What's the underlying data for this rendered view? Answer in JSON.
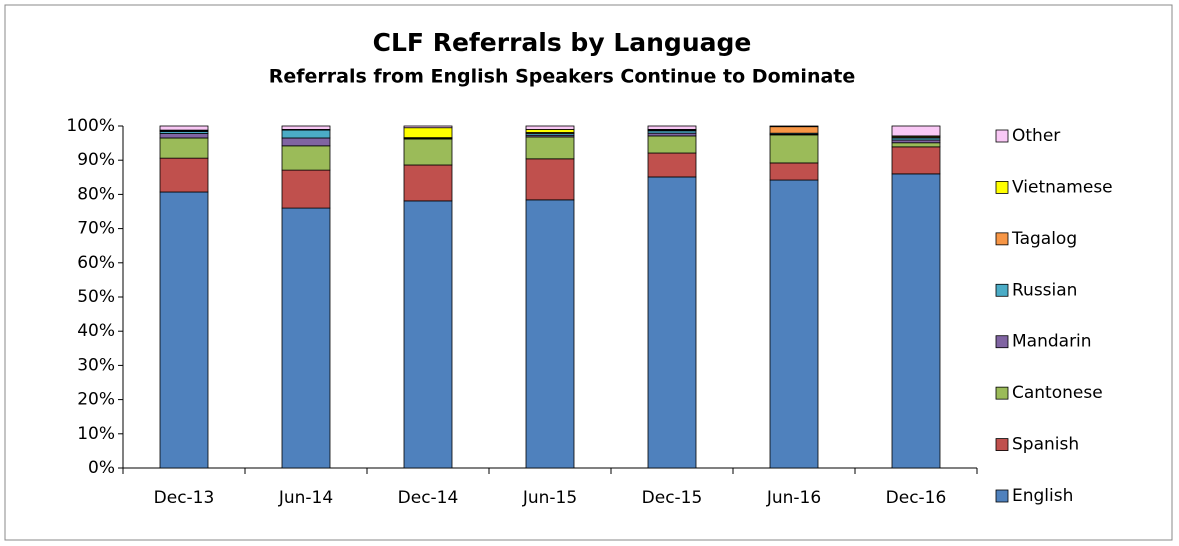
{
  "chart_data": {
    "type": "stacked_bar",
    "title": "CLF Referrals by Language",
    "subtitle": "Referrals from English Speakers Continue to Dominate",
    "categories": [
      "Dec-13",
      "Jun-14",
      "Dec-14",
      "Jun-15",
      "Dec-15",
      "Jun-16",
      "Dec-16"
    ],
    "series": [
      {
        "name": "English",
        "color": "#4f81bd",
        "values": [
          80.7,
          76.0,
          78.1,
          78.4,
          85.1,
          84.2,
          86.0
        ]
      },
      {
        "name": "Spanish",
        "color": "#c0504d",
        "values": [
          9.9,
          11.1,
          10.5,
          12.0,
          7.0,
          5.0,
          7.9
        ]
      },
      {
        "name": "Cantonese",
        "color": "#9bbb59",
        "values": [
          5.9,
          7.1,
          7.6,
          6.4,
          5.0,
          8.2,
          1.2
        ]
      },
      {
        "name": "Mandarin",
        "color": "#8064a2",
        "values": [
          1.3,
          2.3,
          0.2,
          0.5,
          0.8,
          0.2,
          0.8
        ]
      },
      {
        "name": "Russian",
        "color": "#4bacc6",
        "values": [
          0.6,
          2.3,
          0.2,
          0.5,
          0.7,
          0.3,
          0.6
        ]
      },
      {
        "name": "Tagalog",
        "color": "#f79646",
        "values": [
          0.2,
          0,
          0,
          0.3,
          0.2,
          1.9,
          0.3
        ]
      },
      {
        "name": "Vietnamese",
        "color": "#ffff00",
        "values": [
          0.2,
          0.2,
          2.9,
          0.9,
          0.2,
          0,
          0.3
        ]
      },
      {
        "name": "Other",
        "color": "#f9c8f5",
        "values": [
          1.2,
          1.0,
          0.5,
          1.0,
          1.0,
          0.2,
          2.9
        ]
      }
    ],
    "ylim": [
      0,
      100
    ],
    "yticks": [
      {
        "value": 0,
        "label": "0%"
      },
      {
        "value": 10,
        "label": "10%"
      },
      {
        "value": 20,
        "label": "20%"
      },
      {
        "value": 30,
        "label": "30%"
      },
      {
        "value": 40,
        "label": "40%"
      },
      {
        "value": 50,
        "label": "50%"
      },
      {
        "value": 60,
        "label": "60%"
      },
      {
        "value": 70,
        "label": "70%"
      },
      {
        "value": 80,
        "label": "80%"
      },
      {
        "value": 90,
        "label": "90%"
      },
      {
        "value": 100,
        "label": "100%"
      }
    ],
    "grid": false,
    "legend": "right"
  }
}
